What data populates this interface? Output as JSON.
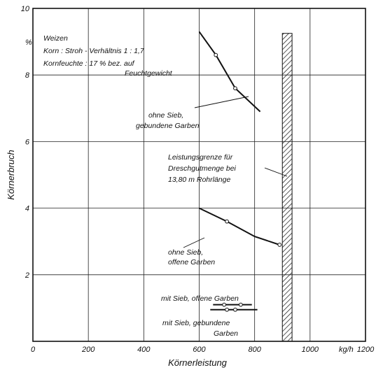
{
  "chart_data": {
    "type": "line",
    "xlabel": "Körnerleistung",
    "ylabel": "Körnerbruch",
    "y_unit": "%",
    "x_unit": "kg/h",
    "xlim": [
      0,
      1200
    ],
    "ylim": [
      0,
      10
    ],
    "x_ticks": [
      "0",
      "200",
      "400",
      "600",
      "800",
      "1000",
      "1200"
    ],
    "y_ticks": [
      "2",
      "4",
      "6",
      "8",
      "10"
    ],
    "grid": true,
    "info": [
      "Weizen",
      "Korn : Stroh - Verhältnis  1 : 1,7",
      "Kornfeuchte :  17 % bez. auf",
      "Feuchtgewicht"
    ],
    "series": [
      {
        "name": "ohne Sieb, gebundene Garben",
        "label_lines": [
          "ohne Sieb,",
          "gebundene Garben"
        ],
        "curve": [
          [
            600,
            9.3
          ],
          [
            660,
            8.6
          ],
          [
            730,
            7.6
          ],
          [
            820,
            6.9
          ]
        ],
        "points": [
          [
            660,
            8.6
          ],
          [
            730,
            7.6
          ]
        ]
      },
      {
        "name": "ohne Sieb, offene Garben",
        "label_lines": [
          "ohne Sieb,",
          "offene Garben"
        ],
        "curve": [
          [
            600,
            4.0
          ],
          [
            700,
            3.6
          ],
          [
            800,
            3.15
          ],
          [
            890,
            2.9
          ]
        ],
        "points": [
          [
            700,
            3.6
          ],
          [
            890,
            2.9
          ]
        ]
      },
      {
        "name": "mit Sieb, offene Garben",
        "label_lines": [
          "mit Sieb, offene Garben"
        ],
        "curve": [
          [
            650,
            1.1
          ],
          [
            790,
            1.1
          ]
        ],
        "points": [
          [
            690,
            1.1
          ],
          [
            750,
            1.1
          ]
        ]
      },
      {
        "name": "mit Sieb, gebundene Garben",
        "label_lines": [
          "mit Sieb, gebundene",
          "Garben"
        ],
        "curve": [
          [
            640,
            0.95
          ],
          [
            810,
            0.95
          ]
        ],
        "points": [
          [
            700,
            0.95
          ],
          [
            730,
            0.95
          ]
        ]
      }
    ],
    "limit": {
      "label_lines": [
        "Leistungsgrenze  für",
        "Dreschgutmenge  bei",
        "13,80 m  Rohrlänge"
      ],
      "x_from": 900,
      "x_to": 935
    }
  }
}
